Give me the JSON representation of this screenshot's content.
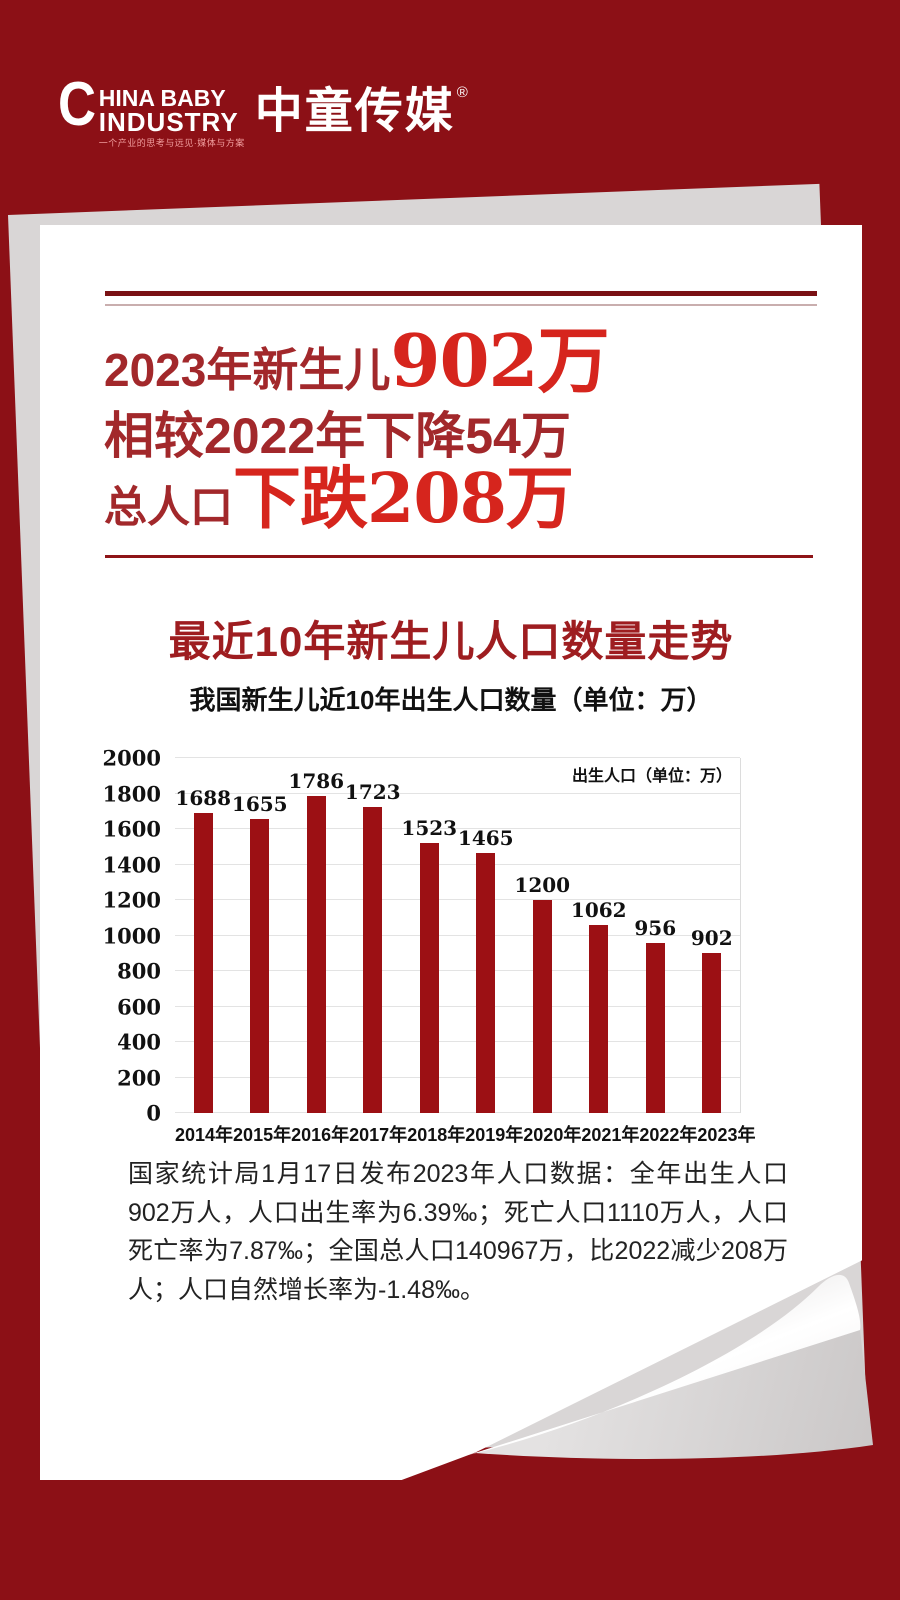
{
  "logo": {
    "big_c": "C",
    "en_line1": "HINA BABY",
    "en_line2": "INDUSTRY",
    "tagline": "一个产业的思考与远见·媒体与方案",
    "cn": "中童传媒",
    "reg": "®"
  },
  "headline": {
    "line1_prefix": "2023年新生儿",
    "line1_big": "902万",
    "line2": "相较2022年下降54万",
    "line3_prefix": "总人口",
    "line3_big": "下跌208万"
  },
  "section_title": "最近10年新生儿人口数量走势",
  "chart_data": {
    "type": "bar",
    "title": "我国新生儿近10年出生人口数量（单位：万）",
    "legend": "出生人口（单位：万）",
    "legend_position": "top-right",
    "categories": [
      "2014年",
      "2015年",
      "2016年",
      "2017年",
      "2018年",
      "2019年",
      "2020年",
      "2021年",
      "2022年",
      "2023年"
    ],
    "values": [
      1688,
      1655,
      1786,
      1723,
      1523,
      1465,
      1200,
      1062,
      956,
      902
    ],
    "xlabel": "",
    "ylabel": "",
    "ylim": [
      0,
      2000
    ],
    "yticks": [
      2000,
      1800,
      1600,
      1400,
      1200,
      1000,
      800,
      600,
      400,
      200,
      0
    ],
    "grid": true,
    "bar_color": "#9c1014"
  },
  "paragraph": "国家统计局1月17日发布2023年人口数据：全年出生人口902万人，人口出生率为6.39‰；死亡人口1110万人，人口死亡率为7.87‰；全国总人口140967万，比2022减少208万人；人口自然增长率为-1.48‰。",
  "colors": {
    "background": "#8C1016",
    "bar": "#9c1014",
    "headline_dark": "#a2282b",
    "headline_bright": "#d6251d",
    "rule_dark": "#7a1114",
    "rule_light": "#c9aeae",
    "section_title": "#9e1d20"
  }
}
